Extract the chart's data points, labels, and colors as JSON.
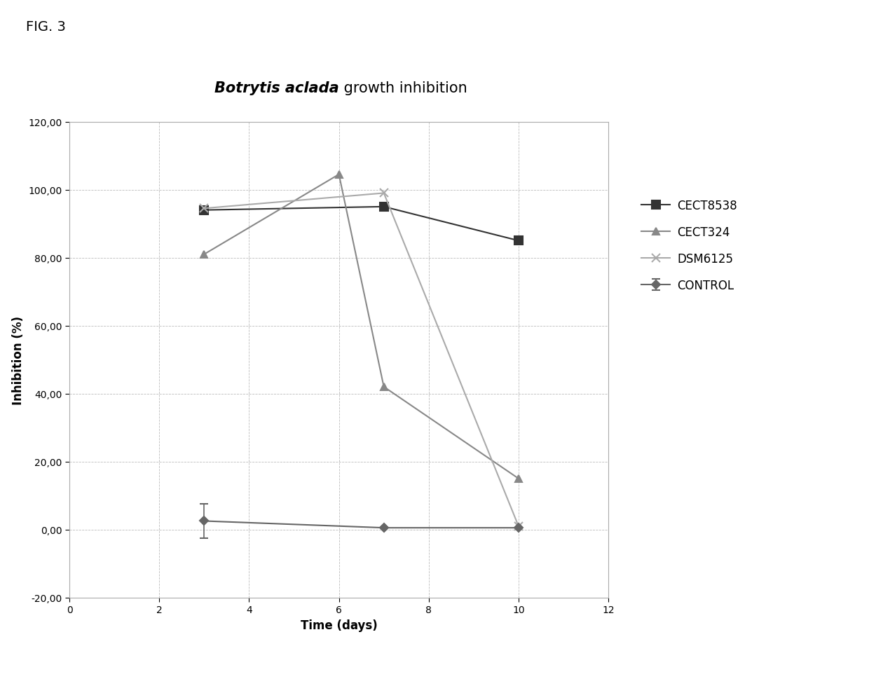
{
  "title_italic": "Botrytis aclada",
  "title_normal": " growth inhibition",
  "xlabel": "Time (days)",
  "ylabel": "Inhibition (%)",
  "fig_label": "FIG. 3",
  "xlim": [
    0,
    12
  ],
  "ylim": [
    -20,
    120
  ],
  "xticks": [
    0,
    2,
    4,
    6,
    8,
    10,
    12
  ],
  "yticks": [
    -20.0,
    0.0,
    20.0,
    40.0,
    60.0,
    80.0,
    100.0,
    120.0
  ],
  "ytick_labels": [
    "-20,00",
    "0,00",
    "20,00",
    "40,00",
    "60,00",
    "80,00",
    "100,00",
    "120,00"
  ],
  "series": [
    {
      "label": "CONTROL",
      "x": [
        3,
        7,
        10
      ],
      "y": [
        2.5,
        0.5,
        0.5
      ],
      "color": "#666666",
      "marker": "D",
      "markersize": 6,
      "linewidth": 1.5,
      "error_x": [
        3
      ],
      "error_y_val": [
        5.0
      ]
    },
    {
      "label": "CECT8538",
      "x": [
        3,
        7,
        10
      ],
      "y": [
        94.0,
        95.0,
        85.0
      ],
      "color": "#333333",
      "marker": "s",
      "markersize": 8,
      "linewidth": 1.5,
      "error_x": [],
      "error_y_val": []
    },
    {
      "label": "CECT324",
      "x": [
        3,
        6,
        7,
        10
      ],
      "y": [
        81.0,
        104.5,
        42.0,
        15.0
      ],
      "color": "#888888",
      "marker": "^",
      "markersize": 7,
      "linewidth": 1.5,
      "error_x": [],
      "error_y_val": []
    },
    {
      "label": "DSM6125",
      "x": [
        3,
        7,
        10
      ],
      "y": [
        94.5,
        99.0,
        1.0
      ],
      "color": "#aaaaaa",
      "marker": "x",
      "markersize": 9,
      "linewidth": 1.5,
      "error_x": [],
      "error_y_val": []
    }
  ],
  "grid_color": "#bbbbbb",
  "grid_linestyle": "--",
  "grid_linewidth": 0.6,
  "background_color": "#ffffff",
  "box_border_color": "#aaaaaa",
  "legend_fontsize": 12,
  "axis_label_fontsize": 12,
  "tick_fontsize": 10,
  "title_fontsize": 15
}
